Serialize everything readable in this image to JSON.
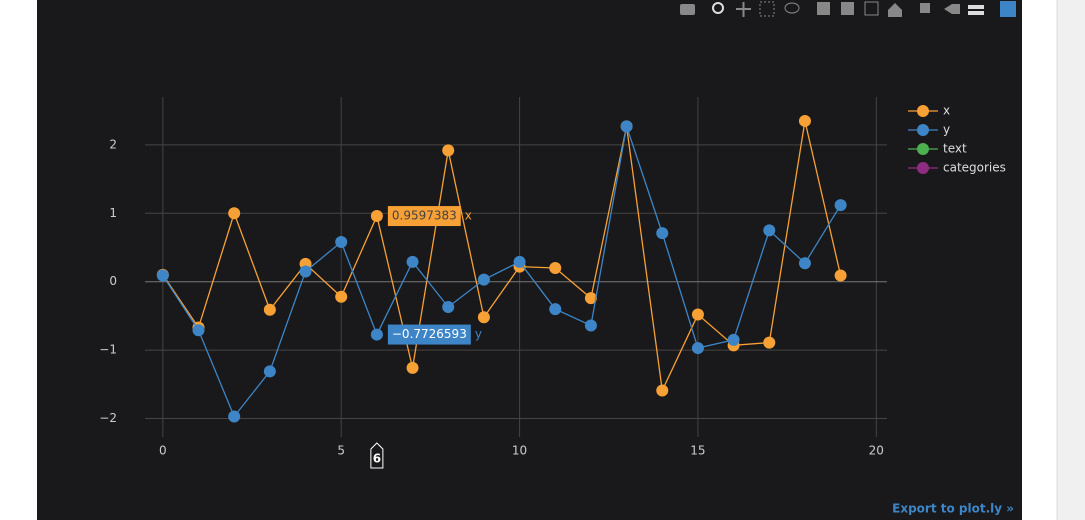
{
  "chart_data": {
    "type": "line",
    "x": [
      0,
      1,
      2,
      3,
      4,
      5,
      6,
      7,
      8,
      9,
      10,
      11,
      12,
      13,
      14,
      15,
      16,
      17,
      18,
      19
    ],
    "series": [
      {
        "name": "x",
        "color": "#f7a035",
        "values": [
          0.1,
          -0.67,
          1.0,
          -0.41,
          0.26,
          -0.22,
          0.9597383,
          -1.26,
          1.92,
          -0.52,
          0.22,
          0.2,
          -0.24,
          2.27,
          -1.59,
          -0.48,
          -0.93,
          -0.89,
          2.35,
          0.09
        ]
      },
      {
        "name": "y",
        "color": "#3d85c6",
        "values": [
          0.09,
          -0.71,
          -1.97,
          -1.31,
          0.15,
          0.58,
          -0.7726593,
          0.29,
          -0.37,
          0.03,
          0.29,
          -0.4,
          -0.64,
          2.27,
          0.71,
          -0.97,
          -0.85,
          0.75,
          0.27,
          1.12
        ]
      },
      {
        "name": "text",
        "color": "#4caf50",
        "values": [
          null,
          null,
          null,
          null,
          null,
          null,
          null,
          null,
          null,
          null,
          null,
          null,
          null,
          null,
          null,
          null,
          null,
          null,
          null,
          null
        ]
      },
      {
        "name": "categories",
        "color": "#8e2c80",
        "values": [
          null,
          null,
          null,
          null,
          null,
          null,
          null,
          null,
          null,
          null,
          null,
          null,
          null,
          null,
          null,
          null,
          null,
          null,
          null,
          null
        ]
      }
    ],
    "xlim": [
      -0.5,
      20.3
    ],
    "xticks": [
      0,
      5,
      10,
      15,
      20
    ],
    "ylim": [
      -2.27,
      2.7
    ],
    "yticks": [
      {
        "value": -2,
        "label": "−2"
      },
      {
        "value": -1,
        "label": "−1"
      },
      0,
      1,
      2
    ],
    "grid": true,
    "legend": "top-right",
    "hover": {
      "index": 6,
      "labels": [
        "0.9597383",
        "−0.7726593"
      ]
    },
    "export_link": "Export to plot.ly »"
  }
}
